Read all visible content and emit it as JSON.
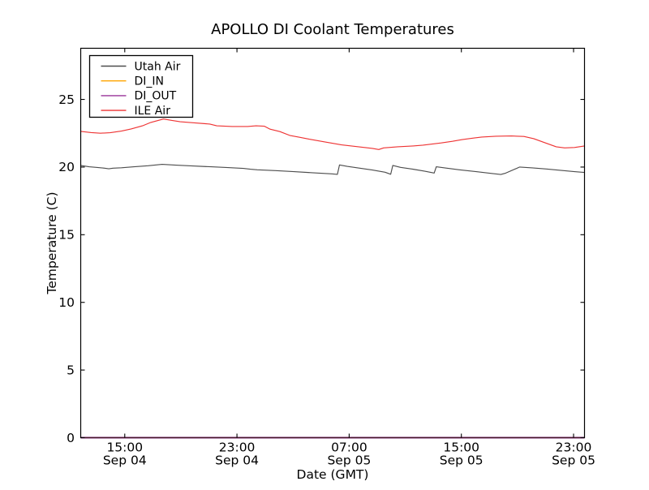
{
  "chart_data": {
    "type": "line",
    "title": "APOLLO DI Coolant Temperatures",
    "xlabel": "Date (GMT)",
    "ylabel": "Temperature (C)",
    "xlim": [
      0,
      35.92
    ],
    "ylim": [
      0,
      28.78
    ],
    "x_unit": "hours since ~12:00 Sep 04 GMT",
    "grid": false,
    "yticks": [
      0,
      5,
      10,
      15,
      20,
      25
    ],
    "xticks": [
      {
        "pos": 3.14,
        "time": "15:00",
        "date": "Sep 04"
      },
      {
        "pos": 11.14,
        "time": "23:00",
        "date": "Sep 04"
      },
      {
        "pos": 19.14,
        "time": "07:00",
        "date": "Sep 05"
      },
      {
        "pos": 27.14,
        "time": "15:00",
        "date": "Sep 05"
      },
      {
        "pos": 35.14,
        "time": "23:00",
        "date": "Sep 05"
      }
    ],
    "legend": {
      "position": "upper left",
      "entries": [
        {
          "label": "Utah Air",
          "color": "#4d4d4d"
        },
        {
          "label": "DI_IN",
          "color": "#ffa500"
        },
        {
          "label": "DI_OUT",
          "color": "#993399"
        },
        {
          "label": "ILE Air",
          "color": "#ee3333"
        }
      ]
    },
    "series": [
      {
        "name": "Utah Air",
        "color": "#4d4d4d",
        "points": [
          [
            0,
            20.12
          ],
          [
            0.6,
            20.02
          ],
          [
            1.1,
            19.98
          ],
          [
            1.7,
            19.92
          ],
          [
            2.0,
            19.87
          ],
          [
            2.3,
            19.92
          ],
          [
            2.9,
            19.95
          ],
          [
            3.8,
            20.02
          ],
          [
            4.8,
            20.1
          ],
          [
            5.8,
            20.2
          ],
          [
            6.8,
            20.14
          ],
          [
            8.0,
            20.08
          ],
          [
            9.3,
            20.02
          ],
          [
            10.5,
            19.96
          ],
          [
            11.6,
            19.9
          ],
          [
            12.1,
            19.84
          ],
          [
            12.6,
            19.8
          ],
          [
            13.9,
            19.74
          ],
          [
            15.2,
            19.66
          ],
          [
            16.5,
            19.58
          ],
          [
            17.9,
            19.5
          ],
          [
            18.3,
            19.46
          ],
          [
            18.45,
            20.16
          ],
          [
            19.0,
            20.05
          ],
          [
            19.8,
            19.93
          ],
          [
            20.8,
            19.78
          ],
          [
            21.7,
            19.62
          ],
          [
            22.1,
            19.47
          ],
          [
            22.25,
            20.12
          ],
          [
            22.8,
            19.98
          ],
          [
            23.6,
            19.86
          ],
          [
            24.5,
            19.7
          ],
          [
            25.2,
            19.56
          ],
          [
            25.35,
            20.02
          ],
          [
            26.0,
            19.93
          ],
          [
            27.0,
            19.8
          ],
          [
            28.2,
            19.66
          ],
          [
            29.3,
            19.53
          ],
          [
            29.95,
            19.45
          ],
          [
            30.3,
            19.55
          ],
          [
            31.3,
            20.0
          ],
          [
            32.2,
            19.94
          ],
          [
            33.2,
            19.86
          ],
          [
            34.2,
            19.76
          ],
          [
            35.2,
            19.66
          ],
          [
            35.92,
            19.6
          ]
        ]
      },
      {
        "name": "DI_IN",
        "color": "#ffa500",
        "points": [
          [
            0,
            0
          ],
          [
            35.92,
            0
          ]
        ]
      },
      {
        "name": "DI_OUT",
        "color": "#993399",
        "points": [
          [
            0,
            0
          ],
          [
            35.92,
            0
          ]
        ]
      },
      {
        "name": "ILE Air",
        "color": "#ee3333",
        "points": [
          [
            0,
            22.64
          ],
          [
            0.75,
            22.55
          ],
          [
            1.4,
            22.5
          ],
          [
            2.1,
            22.54
          ],
          [
            2.9,
            22.66
          ],
          [
            3.6,
            22.82
          ],
          [
            4.4,
            23.05
          ],
          [
            5.0,
            23.3
          ],
          [
            5.9,
            23.55
          ],
          [
            6.5,
            23.45
          ],
          [
            7.1,
            23.35
          ],
          [
            8.2,
            23.26
          ],
          [
            9.2,
            23.18
          ],
          [
            9.7,
            23.05
          ],
          [
            10.8,
            23.0
          ],
          [
            11.9,
            23.0
          ],
          [
            12.5,
            23.05
          ],
          [
            13.1,
            23.02
          ],
          [
            13.5,
            22.8
          ],
          [
            14.2,
            22.62
          ],
          [
            14.9,
            22.34
          ],
          [
            15.6,
            22.2
          ],
          [
            16.3,
            22.06
          ],
          [
            17.4,
            21.86
          ],
          [
            18.6,
            21.64
          ],
          [
            19.8,
            21.5
          ],
          [
            20.8,
            21.38
          ],
          [
            21.25,
            21.3
          ],
          [
            21.6,
            21.42
          ],
          [
            22.6,
            21.5
          ],
          [
            23.7,
            21.56
          ],
          [
            24.4,
            21.62
          ],
          [
            25.7,
            21.78
          ],
          [
            26.5,
            21.9
          ],
          [
            27.2,
            22.03
          ],
          [
            28.0,
            22.14
          ],
          [
            28.6,
            22.22
          ],
          [
            29.6,
            22.28
          ],
          [
            30.7,
            22.3
          ],
          [
            31.6,
            22.26
          ],
          [
            32.3,
            22.1
          ],
          [
            33.1,
            21.8
          ],
          [
            33.9,
            21.5
          ],
          [
            34.5,
            21.42
          ],
          [
            35.2,
            21.45
          ],
          [
            35.92,
            21.56
          ]
        ]
      }
    ]
  }
}
